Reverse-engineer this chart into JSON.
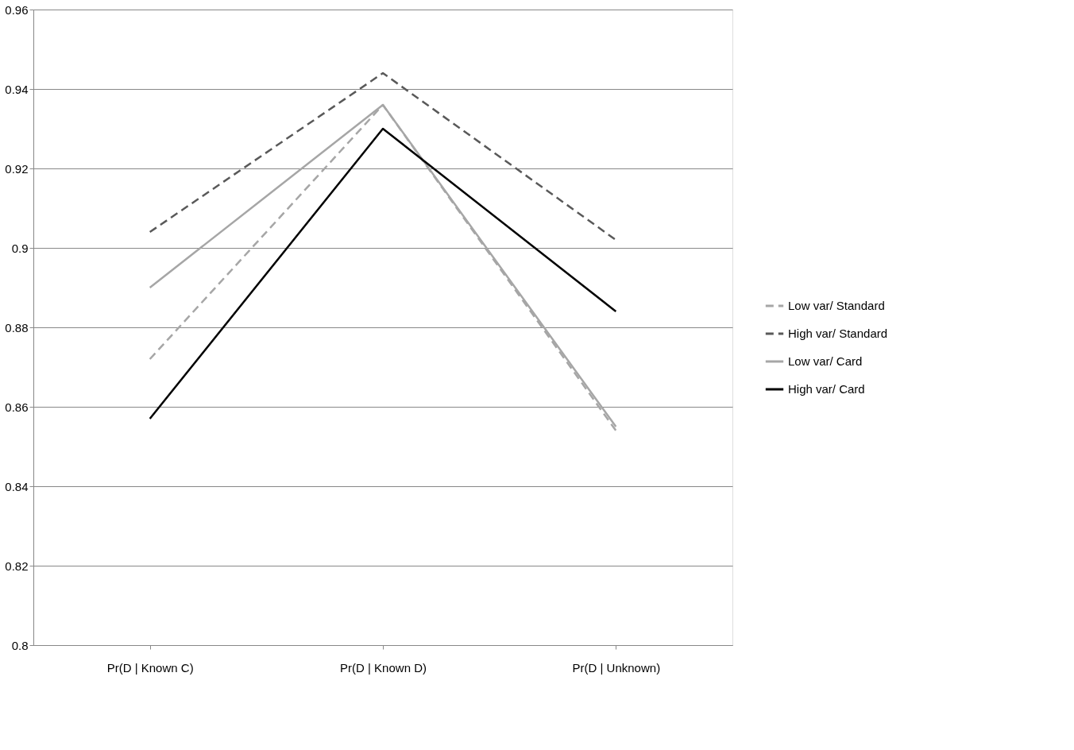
{
  "chart_data": {
    "type": "line",
    "categories": [
      "Pr(D | Known C)",
      "Pr(D | Known D)",
      "Pr(D | Unknown)"
    ],
    "series": [
      {
        "name": "Low var/ Standard",
        "color": "#a6a6a6",
        "line_style": "dashed",
        "values": [
          0.872,
          0.936,
          0.854
        ]
      },
      {
        "name": "High var/ Standard",
        "color": "#595959",
        "line_style": "dashed",
        "values": [
          0.904,
          0.944,
          0.902
        ]
      },
      {
        "name": "Low var/ Card",
        "color": "#a6a6a6",
        "line_style": "solid",
        "values": [
          0.89,
          0.936,
          0.855
        ]
      },
      {
        "name": "High var/ Card",
        "color": "#000000",
        "line_style": "solid",
        "values": [
          0.857,
          0.93,
          0.884
        ]
      }
    ],
    "ylim": [
      0.8,
      0.96
    ],
    "yticks": [
      0.8,
      0.82,
      0.84,
      0.86,
      0.88,
      0.9,
      0.92,
      0.94,
      0.96
    ],
    "grid": "y",
    "legend": "right",
    "marker": "none"
  }
}
